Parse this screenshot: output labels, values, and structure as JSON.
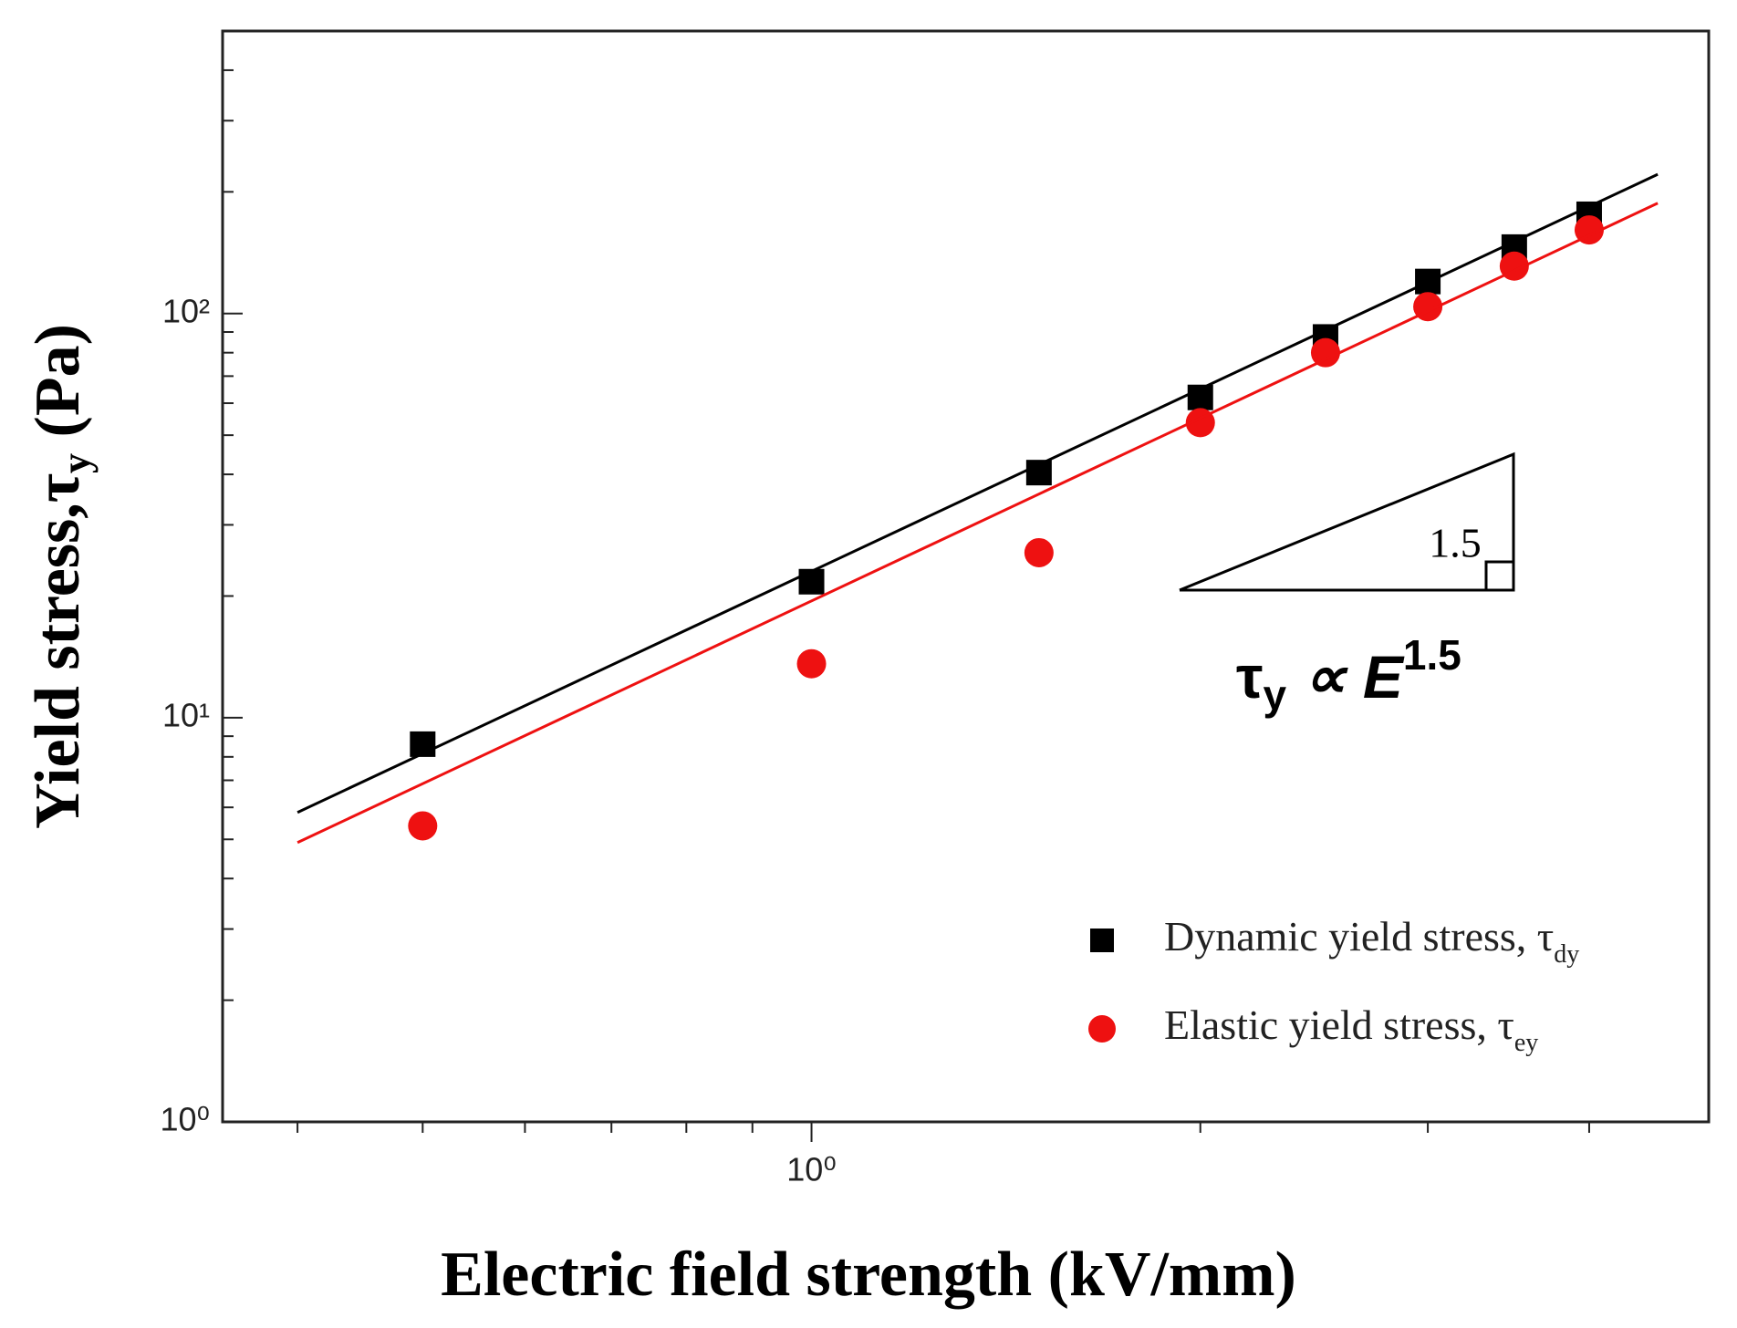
{
  "chart_data": {
    "type": "scatter",
    "x_label": "Electric field strength (kV/mm)",
    "y_label": "Yield stress,τ",
    "y_label_sub": "y",
    "y_label_end": " (Pa)",
    "xscale": "log",
    "yscale": "log",
    "xlim": [
      0.35,
      4.95
    ],
    "ylim": [
      1,
      500
    ],
    "xticks": [
      {
        "value": 1,
        "label": "10⁰"
      }
    ],
    "yticks": [
      {
        "value": 1,
        "label": "10⁰"
      },
      {
        "value": 10,
        "label": "10¹"
      },
      {
        "value": 100,
        "label": "10²"
      }
    ],
    "legend": "lower right",
    "series": [
      {
        "name": "Dynamic yield stress, τ",
        "name_sub": "dy",
        "color": "#000000",
        "marker": "square",
        "x": [
          0.5,
          1,
          1.5,
          2,
          2.5,
          3,
          3.5,
          4
        ],
        "values": [
          8.6,
          21.7,
          40.4,
          62,
          87.5,
          120,
          146,
          176
        ]
      },
      {
        "name": "Elastic yield stress, τ",
        "name_sub": "ey",
        "color": "#ee1111",
        "marker": "circle",
        "x": [
          0.5,
          1,
          1.5,
          2,
          2.5,
          3,
          3.5,
          4
        ],
        "values": [
          5.4,
          13.6,
          25.6,
          53.7,
          80,
          104,
          131,
          161
        ]
      },
      {
        "color": "#000000",
        "marker": "line",
        "x": [
          0.4,
          4.52
        ],
        "values": [
          5.83,
          221
        ]
      },
      {
        "color": "#ee1111",
        "marker": "line",
        "x": [
          0.4,
          4.52
        ],
        "values": [
          4.91,
          187.5
        ]
      }
    ],
    "annotations": {
      "slope": "1.5",
      "law_base": "τ",
      "law_sub": "y",
      "law_mid": " ∝ E",
      "law_sup": "1.5"
    }
  }
}
